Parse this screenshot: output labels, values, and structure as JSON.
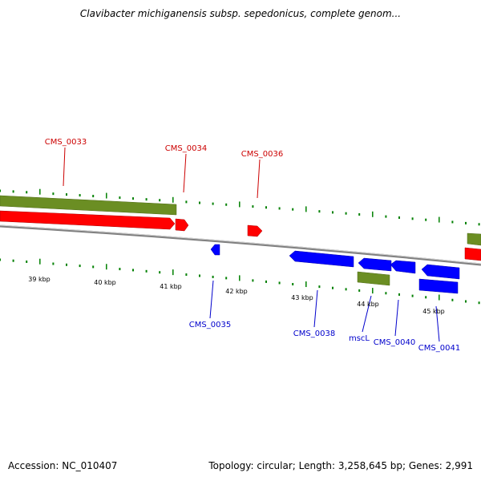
{
  "title": "Clavibacter michiganensis subsp. sepedonicus, complete genom...",
  "footer": {
    "accession": "Accession: NC_010407",
    "summary": "Topology: circular; Length: 3,258,645 bp; Genes: 2,991"
  },
  "colors": {
    "forward_cds": "#ff0000",
    "reverse_cds": "#0000ff",
    "other_feature": "#6b8e23",
    "backbone": "#808080",
    "ticks": "#008000",
    "forward_label": "#cc0000",
    "reverse_label": "#0000cc"
  },
  "scale_labels": [
    "39 kbp",
    "40 kbp",
    "41 kbp",
    "42 kbp",
    "43 kbp",
    "44 kbp",
    "45 kbp"
  ],
  "forward_labels": [
    "CMS_0033",
    "CMS_0034",
    "CMS_0036"
  ],
  "reverse_labels": [
    "CMS_0035",
    "CMS_0038",
    "mscL",
    "CMS_0040",
    "CMS_0041"
  ]
}
